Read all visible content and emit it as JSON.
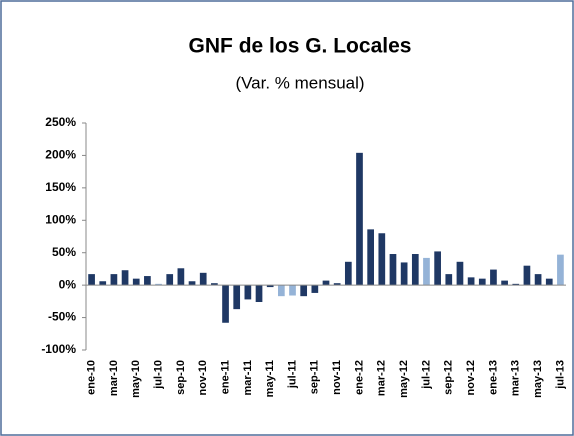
{
  "chart_data": {
    "type": "bar",
    "title": "GNF de los G. Locales",
    "subtitle": "(Var. % mensual)",
    "categories": [
      "ene-10",
      null,
      "mar-10",
      null,
      "may-10",
      null,
      "jul-10",
      null,
      "sep-10",
      null,
      "nov-10",
      null,
      "ene-11",
      null,
      "mar-11",
      null,
      "may-11",
      null,
      "jul-11",
      null,
      "sep-11",
      null,
      "nov-11",
      null,
      "ene-12",
      null,
      "mar-12",
      null,
      "may-12",
      null,
      "jul-12",
      null,
      "sep-12",
      null,
      "nov-12",
      null,
      "ene-13",
      null,
      "mar-13",
      null,
      "may-13",
      null,
      "jul-13"
    ],
    "values": [
      17,
      6,
      17,
      23,
      10,
      14,
      2,
      17,
      26,
      6,
      19,
      3,
      -58,
      -37,
      -22,
      -26,
      -3,
      -17,
      -16,
      -17,
      -12,
      7,
      3,
      36,
      204,
      86,
      80,
      48,
      35,
      48,
      42,
      52,
      17,
      36,
      12,
      10,
      24,
      7,
      2,
      30,
      17,
      10,
      47
    ],
    "colors": [
      "#1f3864",
      "#1f3864",
      "#1f3864",
      "#1f3864",
      "#1f3864",
      "#1f3864",
      "#95b3d7",
      "#1f3864",
      "#1f3864",
      "#1f3864",
      "#1f3864",
      "#1f3864",
      "#1f3864",
      "#1f3864",
      "#1f3864",
      "#1f3864",
      "#1f3864",
      "#95b3d7",
      "#95b3d7",
      "#1f3864",
      "#1f3864",
      "#1f3864",
      "#1f3864",
      "#1f3864",
      "#1f3864",
      "#1f3864",
      "#1f3864",
      "#1f3864",
      "#1f3864",
      "#1f3864",
      "#95b3d7",
      "#1f3864",
      "#1f3864",
      "#1f3864",
      "#1f3864",
      "#1f3864",
      "#1f3864",
      "#1f3864",
      "#1f3864",
      "#1f3864",
      "#1f3864",
      "#1f3864",
      "#95b3d7"
    ],
    "ylim": [
      -100,
      250
    ],
    "yticks": [
      {
        "value": -100,
        "label": "-100%"
      },
      {
        "value": -50,
        "label": "-50%"
      },
      {
        "value": 0,
        "label": "0%"
      },
      {
        "value": 50,
        "label": "50%"
      },
      {
        "value": 100,
        "label": "100%"
      },
      {
        "value": 150,
        "label": "150%"
      },
      {
        "value": 200,
        "label": "200%"
      },
      {
        "value": 250,
        "label": "250%"
      }
    ],
    "grid": false
  }
}
